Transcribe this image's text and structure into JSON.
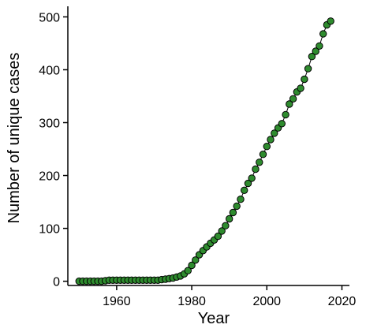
{
  "chart_data": {
    "type": "scatter",
    "title": "",
    "xlabel": "Year",
    "ylabel": "Number of unique cases",
    "xlim": [
      1947,
      2022
    ],
    "ylim": [
      -8,
      520
    ],
    "xticks": [
      1960,
      1980,
      2000,
      2020
    ],
    "yticks": [
      0,
      100,
      200,
      300,
      400,
      500
    ],
    "grid": false,
    "legend": "none",
    "connect_points": true,
    "colors": {
      "marker_fill": "#2e8b2e",
      "marker_edge": "#000000",
      "line": "#000000"
    },
    "x": [
      1950,
      1951,
      1952,
      1953,
      1954,
      1955,
      1956,
      1957,
      1958,
      1959,
      1960,
      1961,
      1962,
      1963,
      1964,
      1965,
      1966,
      1967,
      1968,
      1969,
      1970,
      1971,
      1972,
      1973,
      1974,
      1975,
      1976,
      1977,
      1978,
      1979,
      1980,
      1981,
      1982,
      1983,
      1984,
      1985,
      1986,
      1987,
      1988,
      1989,
      1990,
      1991,
      1992,
      1993,
      1994,
      1995,
      1996,
      1997,
      1998,
      1999,
      2000,
      2001,
      2002,
      2003,
      2004,
      2005,
      2006,
      2007,
      2008,
      2009,
      2010,
      2011,
      2012,
      2013,
      2014,
      2015,
      2016,
      2017
    ],
    "y": [
      0,
      0,
      0,
      0,
      0,
      0,
      0,
      1,
      2,
      2,
      2,
      2,
      2,
      2,
      2,
      2,
      2,
      2,
      2,
      2,
      2,
      2,
      3,
      4,
      5,
      6,
      8,
      10,
      14,
      20,
      30,
      40,
      50,
      58,
      65,
      72,
      78,
      85,
      95,
      105,
      118,
      130,
      142,
      155,
      172,
      185,
      195,
      212,
      225,
      240,
      255,
      268,
      280,
      290,
      298,
      315,
      335,
      345,
      358,
      365,
      382,
      402,
      425,
      435,
      445,
      468,
      485,
      492
    ]
  }
}
